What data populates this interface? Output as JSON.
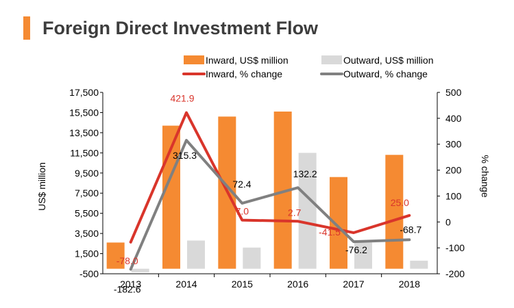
{
  "chart_data": {
    "type": "bar+line",
    "title": "Foreign Direct Investment Flow",
    "categories": [
      "2013",
      "2014",
      "2015",
      "2016",
      "2017",
      "2018"
    ],
    "y_left": {
      "label": "US$ million",
      "range": [
        -500,
        17500
      ],
      "ticks": [
        "17,500",
        "15,500",
        "13,500",
        "11,500",
        "9,500",
        "7,500",
        "5,500",
        "3,500",
        "1,500",
        "-500"
      ]
    },
    "y_right": {
      "label": "% change",
      "range": [
        -200,
        500
      ],
      "ticks": [
        "500",
        "400",
        "300",
        "200",
        "100",
        "0",
        "-100",
        "-200"
      ]
    },
    "legend_position": "top",
    "series": [
      {
        "name": "Inward, US$ million",
        "kind": "bar",
        "axis": "left",
        "color": "#f58a32",
        "values": [
          2600,
          14200,
          15100,
          15600,
          9100,
          11300
        ]
      },
      {
        "name": "Outward, US$ million",
        "kind": "bar",
        "axis": "left",
        "color": "#d9d9d9",
        "values": [
          -350,
          2800,
          2100,
          11500,
          2600,
          800
        ]
      },
      {
        "name": "Inward, % change",
        "kind": "line",
        "axis": "right",
        "color": "#d9352b",
        "values": [
          -78.0,
          421.9,
          7.0,
          2.7,
          -41.5,
          25.0
        ],
        "labels": [
          "-78.0",
          "421.9",
          "7.0",
          "2.7",
          "-41.5",
          "25.0"
        ]
      },
      {
        "name": "Outward, % change",
        "kind": "line",
        "axis": "right",
        "color": "#808080",
        "values": [
          -182.6,
          315.3,
          72.4,
          132.2,
          -76.2,
          -68.7
        ],
        "labels": [
          "-182.6",
          "315.3",
          "72.4",
          "132.2",
          "-76.2",
          "-68.7"
        ]
      }
    ]
  }
}
